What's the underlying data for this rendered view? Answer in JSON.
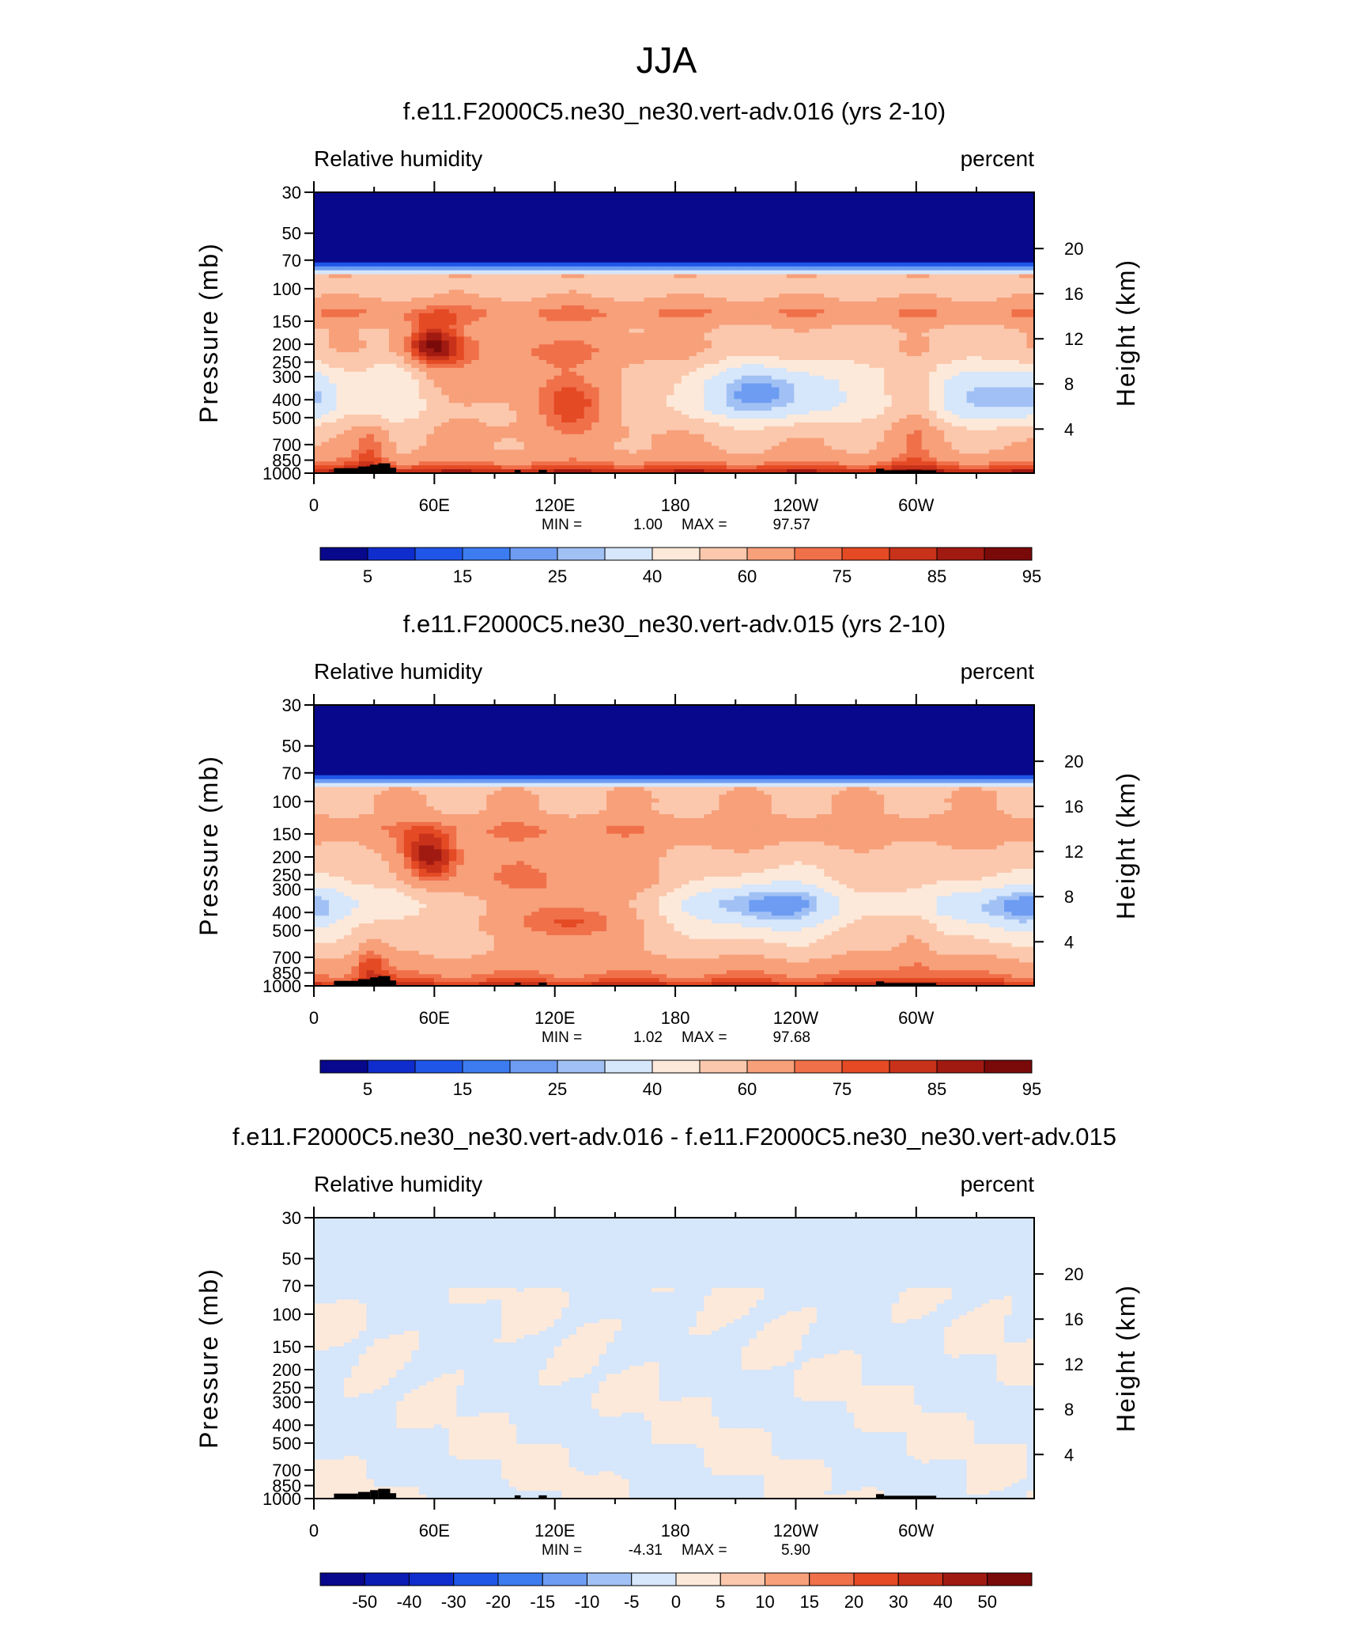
{
  "figure_title": "JJA",
  "chart_data": [
    {
      "type": "heatmap",
      "title": "f.e11.F2000C5.ne30_ne30.vert-adv.016 (yrs 2-10)",
      "variable": "Relative humidity",
      "units": "percent",
      "ylabel": "Pressure (mb)",
      "ylabel_right": "Height (km)",
      "x_ticks": [
        "0",
        "60E",
        "120E",
        "180",
        "120W",
        "60W"
      ],
      "y_ticks": [
        "30",
        "50",
        "70",
        "100",
        "150",
        "200",
        "250",
        "300",
        "400",
        "500",
        "700",
        "850",
        "1000"
      ],
      "y_ticks_right": [
        "20",
        "16",
        "12",
        "8",
        "4"
      ],
      "stats": {
        "min_label": "MIN =",
        "min": "1.00",
        "max_label": "MAX =",
        "max": "97.57"
      },
      "colorbar_levels": [
        "5",
        "15",
        "25",
        "40",
        "60",
        "75",
        "85",
        "95"
      ],
      "field": "rh"
    },
    {
      "type": "heatmap",
      "title": "f.e11.F2000C5.ne30_ne30.vert-adv.015 (yrs 2-10)",
      "variable": "Relative humidity",
      "units": "percent",
      "ylabel": "Pressure (mb)",
      "ylabel_right": "Height (km)",
      "x_ticks": [
        "0",
        "60E",
        "120E",
        "180",
        "120W",
        "60W"
      ],
      "y_ticks": [
        "30",
        "50",
        "70",
        "100",
        "150",
        "200",
        "250",
        "300",
        "400",
        "500",
        "700",
        "850",
        "1000"
      ],
      "y_ticks_right": [
        "20",
        "16",
        "12",
        "8",
        "4"
      ],
      "stats": {
        "min_label": "MIN =",
        "min": "1.02",
        "max_label": "MAX =",
        "max": "97.68"
      },
      "colorbar_levels": [
        "5",
        "15",
        "25",
        "40",
        "60",
        "75",
        "85",
        "95"
      ],
      "field": "rh"
    },
    {
      "type": "heatmap",
      "title": "f.e11.F2000C5.ne30_ne30.vert-adv.016 - f.e11.F2000C5.ne30_ne30.vert-adv.015",
      "variable": "Relative humidity",
      "units": "percent",
      "ylabel": "Pressure (mb)",
      "ylabel_right": "Height (km)",
      "x_ticks": [
        "0",
        "60E",
        "120E",
        "180",
        "120W",
        "60W"
      ],
      "y_ticks": [
        "30",
        "50",
        "70",
        "100",
        "150",
        "200",
        "250",
        "300",
        "400",
        "500",
        "700",
        "850",
        "1000"
      ],
      "y_ticks_right": [
        "20",
        "16",
        "12",
        "8",
        "4"
      ],
      "stats": {
        "min_label": "MIN =",
        "min": "-4.31",
        "max_label": "MAX =",
        "max": "5.90"
      },
      "colorbar_levels": [
        "-50",
        "-40",
        "-30",
        "-20",
        "-15",
        "-10",
        "-5",
        "0",
        "5",
        "10",
        "15",
        "20",
        "30",
        "40",
        "50"
      ],
      "field": "diff"
    }
  ],
  "colormap": [
    "#08088c",
    "#0f2dcd",
    "#1f56e8",
    "#3c7cf0",
    "#6d9cf2",
    "#a1c1f5",
    "#d6e6fb",
    "#fde9d9",
    "#fbc8ad",
    "#f7a07a",
    "#f0704a",
    "#e44a24",
    "#c8321a",
    "#a01a12",
    "#7a0a0a"
  ],
  "diff_colormap": [
    "#08088c",
    "#0a1cb4",
    "#0f2dcd",
    "#1f56e8",
    "#3c7cf0",
    "#6d9cf2",
    "#a1c1f5",
    "#d6e6fb",
    "#fde9d9",
    "#fbc8ad",
    "#f7a07a",
    "#f0704a",
    "#e44a24",
    "#c8321a",
    "#a01a12",
    "#7a0a0a"
  ],
  "topography_color": "#000000"
}
